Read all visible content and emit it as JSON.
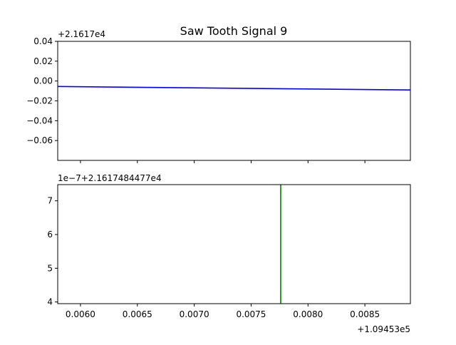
{
  "chart_data": [
    {
      "type": "line",
      "title": "Saw Tooth Signal 9",
      "offset_label": "+2.1617e4",
      "xlabel": "",
      "ylabel": "",
      "xlim": [
        0.0058,
        0.0089
      ],
      "ylim": [
        -0.08,
        0.04
      ],
      "xticks": [
        0.006,
        0.0065,
        0.007,
        0.0075,
        0.008,
        0.0085
      ],
      "yticks": [
        0.04,
        0.02,
        0.0,
        -0.02,
        -0.04,
        -0.06
      ],
      "ytick_labels": [
        "0.04",
        "0.02",
        "0.00",
        "−0.02",
        "−0.04",
        "−0.06"
      ],
      "grid": false,
      "series": [
        {
          "color": "#0000ff",
          "x": [
            0.0058,
            0.0089
          ],
          "y": [
            -0.0055,
            -0.009
          ]
        }
      ]
    },
    {
      "type": "line",
      "offset_label": "1e−7+2.1617484477e4",
      "x_offset_label": "+1.09453e5",
      "xlabel": "",
      "ylabel": "",
      "xlim": [
        0.0058,
        0.0089
      ],
      "ylim": [
        3.95,
        7.48
      ],
      "xticks": [
        0.006,
        0.0065,
        0.007,
        0.0075,
        0.008,
        0.0085
      ],
      "xtick_labels": [
        "0.0060",
        "0.0065",
        "0.0070",
        "0.0075",
        "0.0080",
        "0.0085"
      ],
      "yticks": [
        7,
        6,
        5,
        4
      ],
      "ytick_labels": [
        "7",
        "6",
        "5",
        "4"
      ],
      "grid": false,
      "series": [
        {
          "color": "#008000",
          "x": [
            0.00776,
            0.00776
          ],
          "y": [
            3.95,
            7.48
          ]
        }
      ]
    }
  ]
}
